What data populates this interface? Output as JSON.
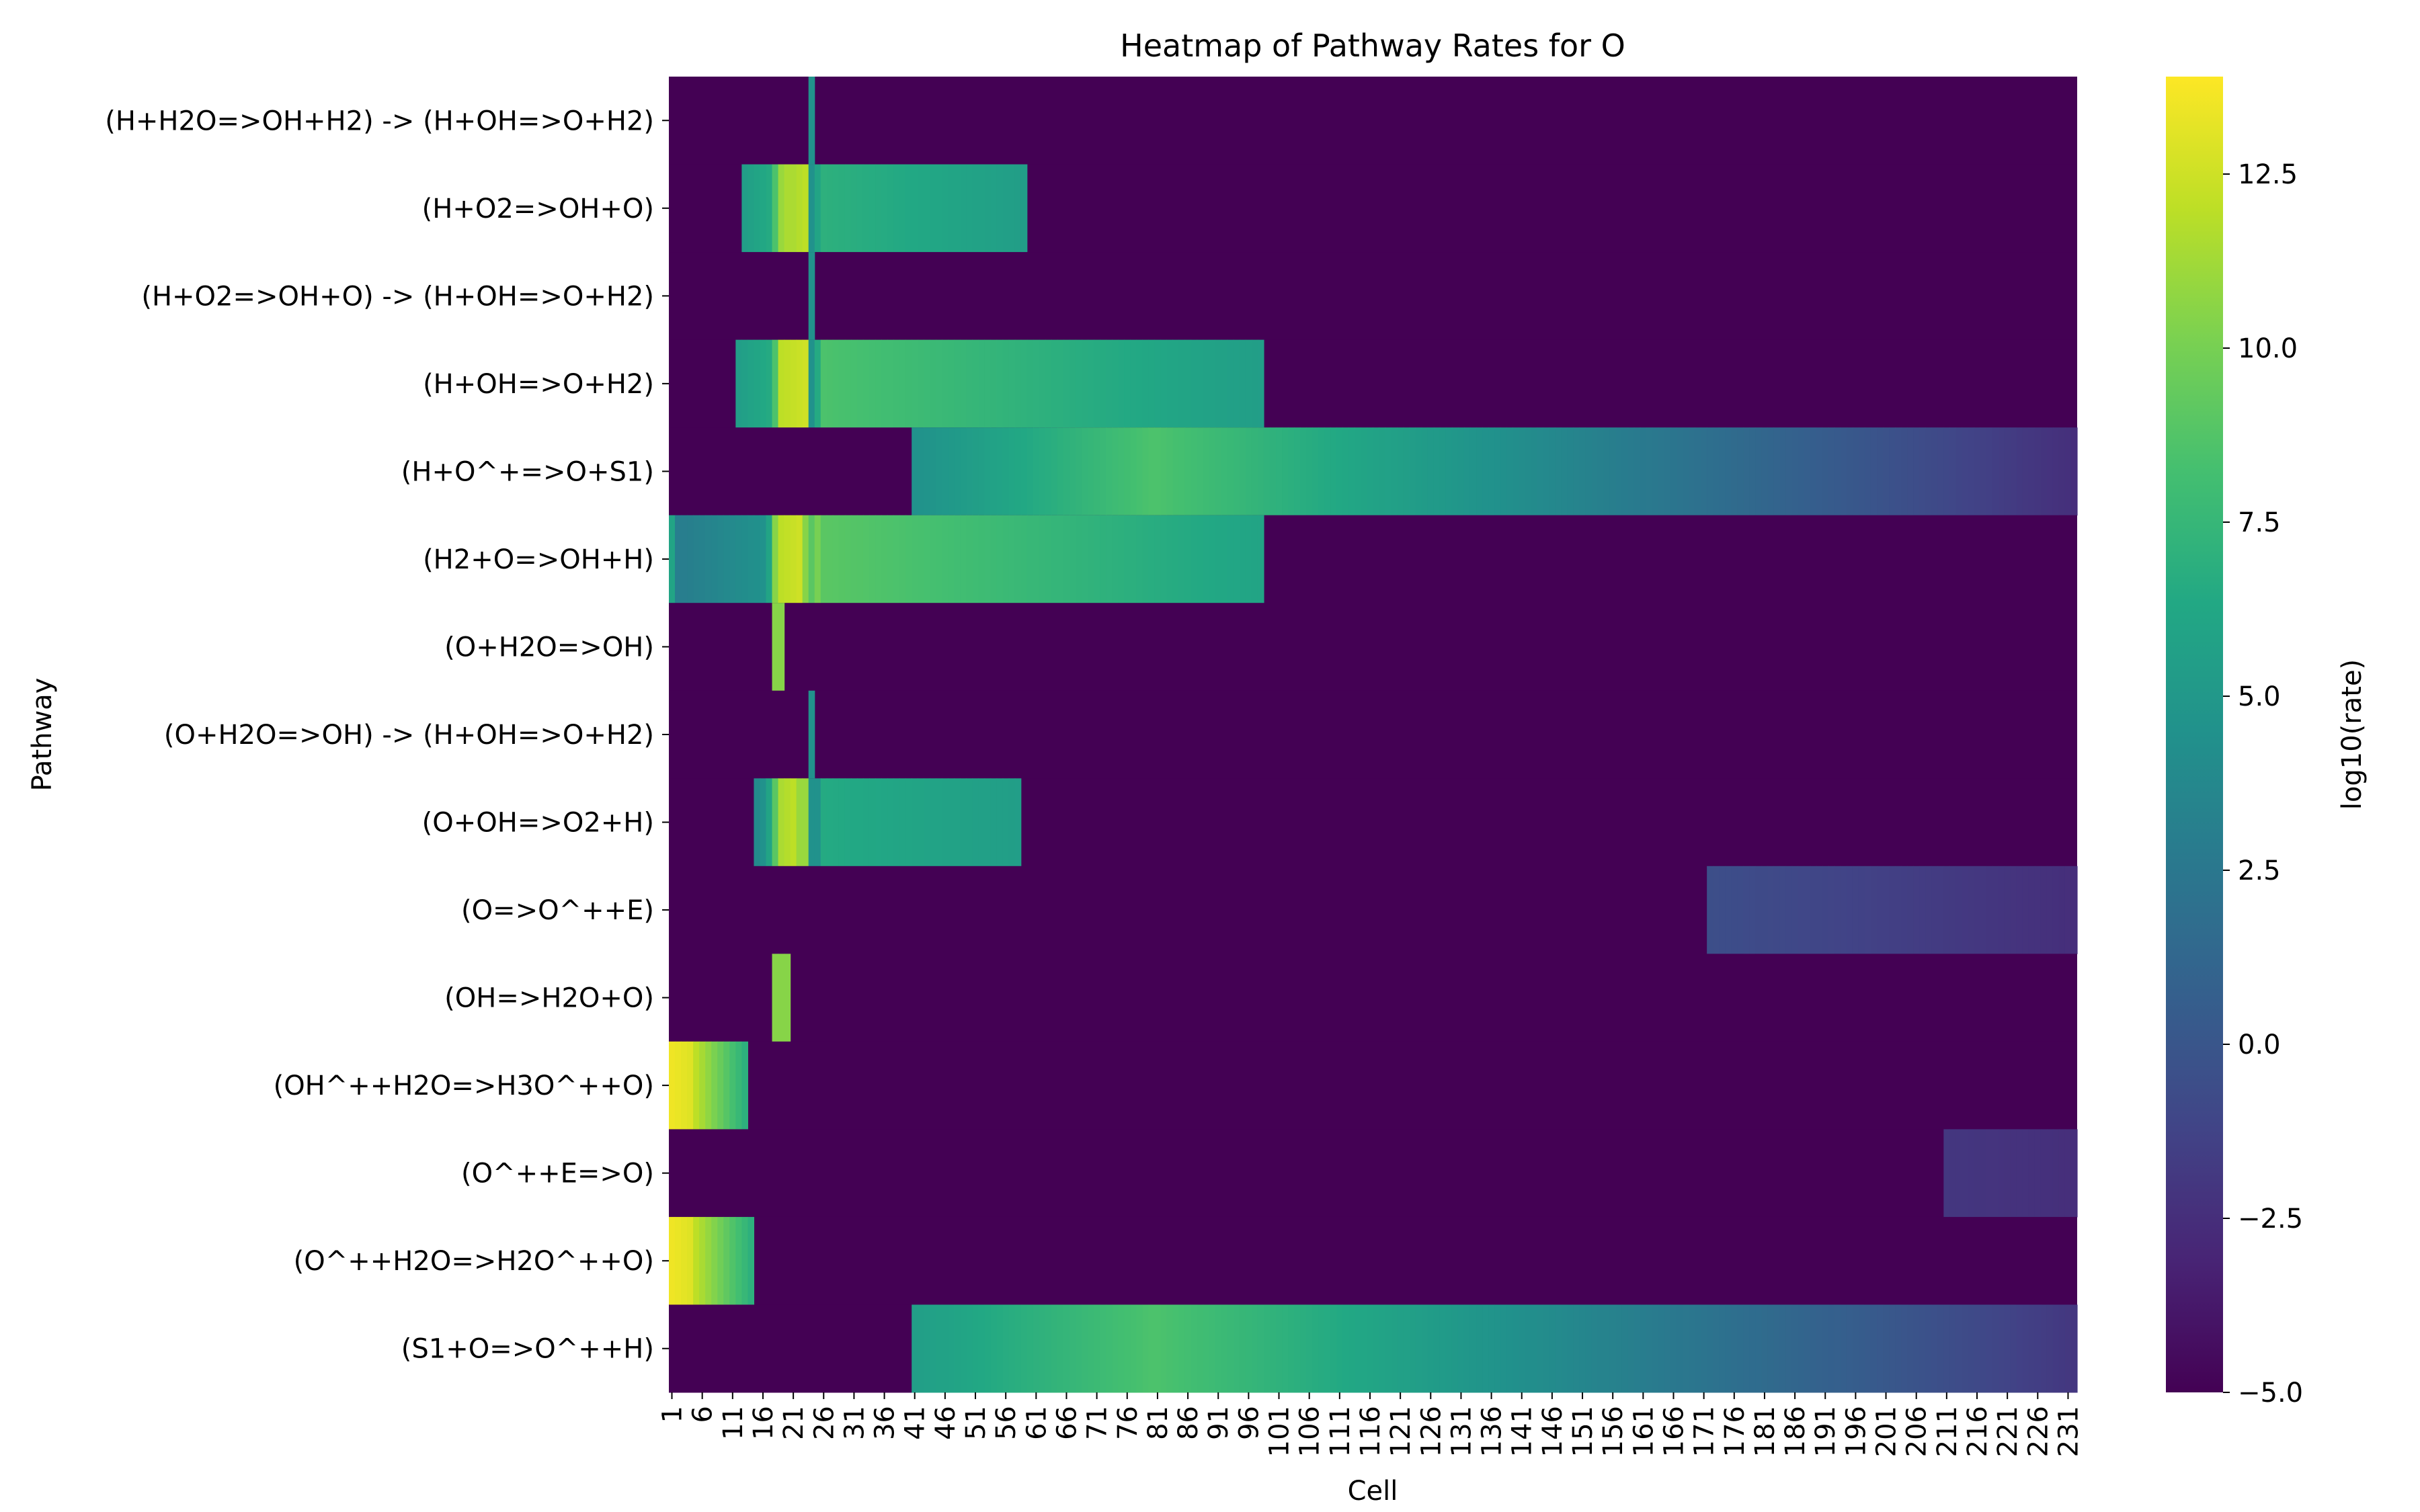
{
  "chart_data": {
    "type": "heatmap",
    "title": "Heatmap of Pathway Rates for O",
    "xlabel": "Cell",
    "ylabel": "Pathway",
    "colorbar_label": "log10(rate)",
    "colormap": "viridis",
    "color_range": [
      -5.0,
      13.9
    ],
    "colorbar_ticks": [
      "−5.0",
      "−2.5",
      "0.0",
      "2.5",
      "5.0",
      "7.5",
      "10.0",
      "12.5"
    ],
    "colorbar_tick_values": [
      -5.0,
      -2.5,
      0.0,
      2.5,
      5.0,
      7.5,
      10.0,
      12.5
    ],
    "n_cells": 232,
    "x_tick_labels": [
      "1",
      "6",
      "11",
      "16",
      "21",
      "26",
      "31",
      "36",
      "41",
      "46",
      "51",
      "56",
      "61",
      "66",
      "71",
      "76",
      "81",
      "86",
      "91",
      "96",
      "101",
      "106",
      "111",
      "116",
      "121",
      "126",
      "131",
      "136",
      "141",
      "146",
      "151",
      "156",
      "161",
      "166",
      "171",
      "176",
      "181",
      "186",
      "191",
      "196",
      "201",
      "206",
      "211",
      "216",
      "221",
      "226",
      "231"
    ],
    "rows": [
      {
        "label": "(H+H2O=>OH+H2) -> (H+OH=>O+H2)",
        "segments": [
          {
            "start": 23,
            "end": 24,
            "from": 4.5,
            "to": 4.5
          }
        ]
      },
      {
        "label": "(H+O2=>OH+O)",
        "segments": [
          {
            "start": 12,
            "end": 17,
            "from": 5.5,
            "to": 6.5
          },
          {
            "start": 17,
            "end": 18,
            "from": 8.5,
            "to": 8.5
          },
          {
            "start": 18,
            "end": 20,
            "from": 11.0,
            "to": 11.5
          },
          {
            "start": 20,
            "end": 23,
            "from": 11.5,
            "to": 12.0
          },
          {
            "start": 23,
            "end": 24,
            "from": 4.5,
            "to": 4.5
          },
          {
            "start": 24,
            "end": 25,
            "from": 6.0,
            "to": 6.0
          },
          {
            "start": 25,
            "end": 59,
            "from": 7.0,
            "to": 5.5
          }
        ]
      },
      {
        "label": "(H+O2=>OH+O) -> (H+OH=>O+H2)",
        "segments": [
          {
            "start": 23,
            "end": 24,
            "from": 4.5,
            "to": 4.5
          }
        ]
      },
      {
        "label": "(H+OH=>O+H2)",
        "segments": [
          {
            "start": 11,
            "end": 17,
            "from": 5.5,
            "to": 6.5
          },
          {
            "start": 17,
            "end": 18,
            "from": 8.5,
            "to": 8.5
          },
          {
            "start": 18,
            "end": 23,
            "from": 12.0,
            "to": 12.5
          },
          {
            "start": 23,
            "end": 24,
            "from": 4.5,
            "to": 4.5
          },
          {
            "start": 24,
            "end": 25,
            "from": 6.5,
            "to": 6.5
          },
          {
            "start": 25,
            "end": 98,
            "from": 8.5,
            "to": 5.5
          }
        ]
      },
      {
        "label": "(H+O^+=>O+S1)",
        "segments": [
          {
            "start": 40,
            "end": 80,
            "from": 4.5,
            "to": 8.5
          },
          {
            "start": 80,
            "end": 232,
            "from": 8.5,
            "to": -2.5
          }
        ]
      },
      {
        "label": "(H2+O=>OH+H)",
        "segments": [
          {
            "start": 0,
            "end": 1,
            "from": 6.0,
            "to": 6.0
          },
          {
            "start": 1,
            "end": 2,
            "from": 3.0,
            "to": 3.0
          },
          {
            "start": 2,
            "end": 16,
            "from": 3.0,
            "to": 4.5
          },
          {
            "start": 16,
            "end": 17,
            "from": 6.0,
            "to": 6.0
          },
          {
            "start": 17,
            "end": 18,
            "from": 10.5,
            "to": 10.5
          },
          {
            "start": 18,
            "end": 22,
            "from": 12.0,
            "to": 12.5
          },
          {
            "start": 22,
            "end": 23,
            "from": 10.5,
            "to": 10.5
          },
          {
            "start": 23,
            "end": 24,
            "from": 9.0,
            "to": 9.0
          },
          {
            "start": 24,
            "end": 25,
            "from": 10.0,
            "to": 10.0
          },
          {
            "start": 25,
            "end": 98,
            "from": 9.0,
            "to": 6.0
          }
        ]
      },
      {
        "label": "(O+H2O=>OH)",
        "segments": [
          {
            "start": 17,
            "end": 19,
            "from": 10.5,
            "to": 10.5
          }
        ]
      },
      {
        "label": "(O+H2O=>OH) -> (H+OH=>O+H2)",
        "segments": [
          {
            "start": 23,
            "end": 24,
            "from": 4.5,
            "to": 4.5
          }
        ]
      },
      {
        "label": "(O+OH=>O2+H)",
        "segments": [
          {
            "start": 14,
            "end": 16,
            "from": 4.0,
            "to": 4.5
          },
          {
            "start": 16,
            "end": 17,
            "from": 6.0,
            "to": 6.0
          },
          {
            "start": 17,
            "end": 18,
            "from": 9.0,
            "to": 9.0
          },
          {
            "start": 18,
            "end": 21,
            "from": 11.5,
            "to": 12.0
          },
          {
            "start": 21,
            "end": 23,
            "from": 11.0,
            "to": 11.0
          },
          {
            "start": 23,
            "end": 25,
            "from": 4.5,
            "to": 4.5
          },
          {
            "start": 25,
            "end": 58,
            "from": 6.5,
            "to": 5.5
          }
        ]
      },
      {
        "label": "(O=>O^++E)",
        "segments": [
          {
            "start": 171,
            "end": 232,
            "from": -0.5,
            "to": -2.5
          }
        ]
      },
      {
        "label": "(OH=>H2O+O)",
        "segments": [
          {
            "start": 17,
            "end": 20,
            "from": 10.5,
            "to": 10.5
          }
        ]
      },
      {
        "label": "(OH^++H2O=>H3O^++O)",
        "segments": [
          {
            "start": 0,
            "end": 4,
            "from": 13.5,
            "to": 13.0
          },
          {
            "start": 4,
            "end": 13,
            "from": 12.0,
            "to": 7.0
          }
        ]
      },
      {
        "label": "(O^++E=>O)",
        "segments": [
          {
            "start": 210,
            "end": 232,
            "from": -2.0,
            "to": -2.5
          }
        ]
      },
      {
        "label": "(O^++H2O=>H2O^++O)",
        "segments": [
          {
            "start": 0,
            "end": 4,
            "from": 13.5,
            "to": 13.0
          },
          {
            "start": 4,
            "end": 14,
            "from": 12.0,
            "to": 7.0
          }
        ]
      },
      {
        "label": "(S1+O=>O^++H)",
        "segments": [
          {
            "start": 40,
            "end": 80,
            "from": 5.5,
            "to": 8.5
          },
          {
            "start": 80,
            "end": 232,
            "from": 8.5,
            "to": -2.0
          }
        ]
      }
    ]
  }
}
